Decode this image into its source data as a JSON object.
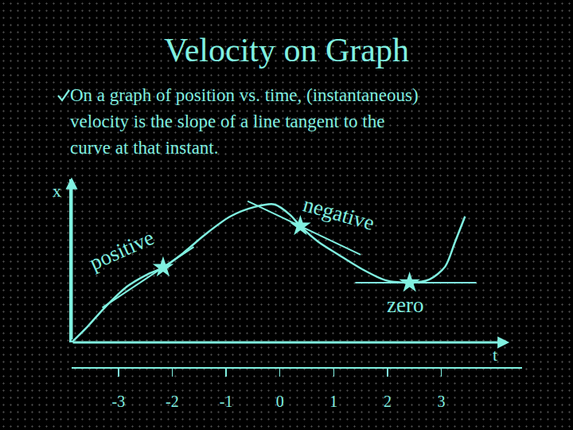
{
  "slide": {
    "title": "Velocity on Graph",
    "bullet": [
      "On a graph of position vs. time, (instantaneous)",
      "velocity is the slope of a line tangent to the",
      "curve at that instant."
    ]
  },
  "chart_data": {
    "type": "line",
    "x_label": "t",
    "y_label": "x",
    "xlim": [
      -3.87,
      4.5
    ],
    "xticks": [
      -3,
      -2,
      -1,
      0,
      1,
      2,
      3
    ],
    "ylim": [
      0,
      6.4
    ],
    "tick_labels": "x",
    "grid": false,
    "color": "#80f0e0",
    "marker": "star",
    "series": [
      {
        "x": [
          -3.87,
          -3.57,
          -3.28,
          -2.84,
          -2.47,
          -2.17,
          -1.8,
          -1.36,
          -0.92,
          -0.47,
          -0.1,
          0.19,
          0.38,
          0.71,
          1.08,
          1.52,
          1.96,
          2.41,
          2.78,
          3.07,
          3.25,
          3.44
        ],
        "values": [
          0,
          0.63,
          1.31,
          2.19,
          2.66,
          2.94,
          3.5,
          4.28,
          4.94,
          5.31,
          5.41,
          5.0,
          4.56,
          3.95,
          3.45,
          2.88,
          2.44,
          2.34,
          2.47,
          2.97,
          3.91,
          4.94
        ]
      }
    ],
    "points": [
      {
        "label": "positive",
        "x": -2.17,
        "value": 2.94,
        "tangent": {
          "x": [
            -3.3,
            -1.6
          ],
          "values": [
            1.36,
            3.74
          ]
        }
      },
      {
        "label": "negative",
        "x": 0.38,
        "value": 4.56,
        "tangent": {
          "x": [
            -0.6,
            1.5
          ],
          "values": [
            5.54,
            3.44
          ]
        }
      },
      {
        "label": "zero",
        "x": 2.41,
        "value": 2.34,
        "tangent": {
          "x": [
            1.4,
            3.65
          ],
          "values": [
            2.34,
            2.34
          ]
        }
      }
    ]
  }
}
